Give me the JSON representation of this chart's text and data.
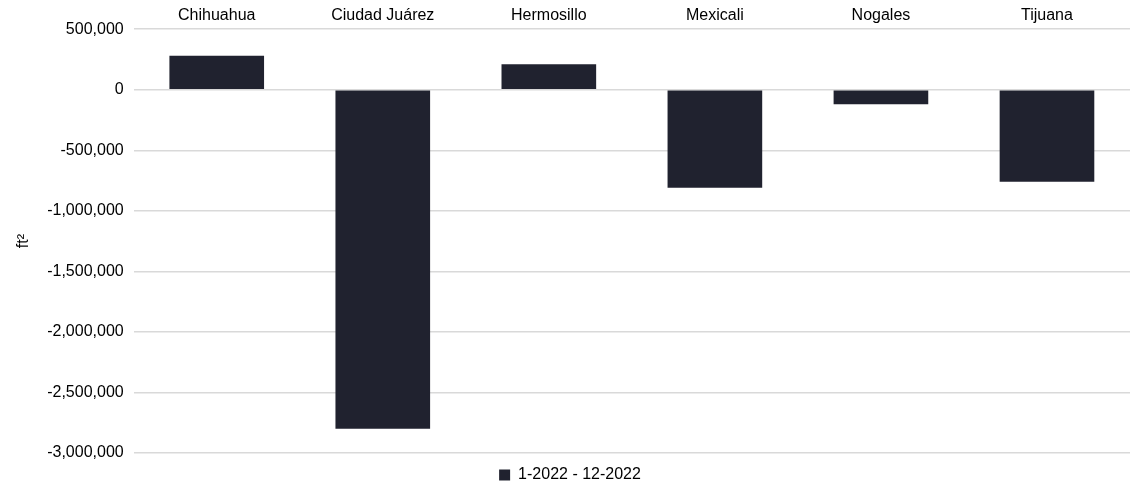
{
  "chart_data": {
    "type": "bar",
    "categories": [
      "Chihuahua",
      "Ciudad Juárez",
      "Hermosillo",
      "Mexicali",
      "Nogales",
      "Tijuana"
    ],
    "series": [
      {
        "name": "1-2022 - 12-2022",
        "color": "#20222f",
        "values": [
          280000,
          -2800000,
          210000,
          -810000,
          -120000,
          -760000
        ]
      }
    ],
    "ylabel": "ft²",
    "ylim": [
      -3000000,
      500000
    ],
    "yticks": [
      {
        "value": -3000000,
        "label": "-3,000,000"
      },
      {
        "value": -2500000,
        "label": "-2,500,000"
      },
      {
        "value": -2000000,
        "label": "-2,000,000"
      },
      {
        "value": -1500000,
        "label": "-1,500,000"
      },
      {
        "value": -1000000,
        "label": "-1,000,000"
      },
      {
        "value": -500000,
        "label": "-500,000"
      },
      0,
      {
        "value": 500000,
        "label": "500,000"
      }
    ],
    "grid": "y",
    "legend": "bottom"
  }
}
